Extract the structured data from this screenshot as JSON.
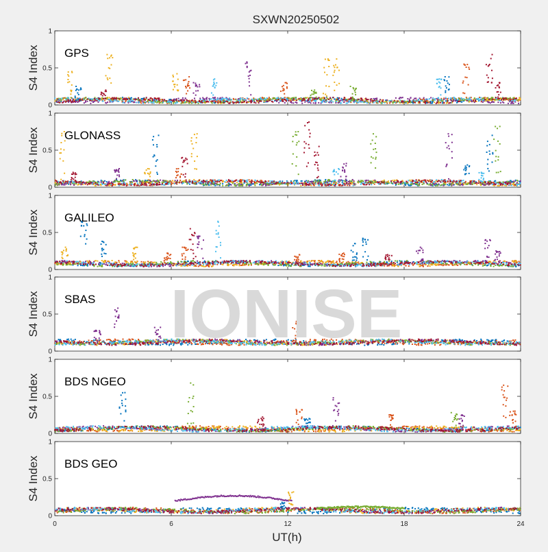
{
  "chart_data": {
    "type": "scatter",
    "title": "SXWN20250502",
    "xlabel": "UT(h)",
    "ylabel": "S4 Index",
    "xlim": [
      0,
      24
    ],
    "ylim": [
      0,
      1
    ],
    "xticks": [
      0,
      6,
      12,
      18,
      24
    ],
    "yticks": [
      0,
      0.5,
      1
    ],
    "xtick_labels": [
      "0",
      "6",
      "12",
      "18",
      "24"
    ],
    "ytick_labels": [
      "0",
      "0.5",
      "1"
    ],
    "watermark": "IONISE",
    "series_colors": [
      "#0072bd",
      "#d95319",
      "#edb120",
      "#7e2f8e",
      "#77ac30",
      "#4dbeee",
      "#a2142f"
    ],
    "panels": [
      {
        "name": "GPS",
        "baseline": 0.06,
        "spikes": [
          [
            0.8,
            0.45,
            2
          ],
          [
            1.2,
            0.25,
            0
          ],
          [
            2.5,
            0.2,
            6
          ],
          [
            2.8,
            0.68,
            2
          ],
          [
            6.2,
            0.42,
            2
          ],
          [
            6.8,
            0.38,
            1
          ],
          [
            7.3,
            0.3,
            3
          ],
          [
            8.2,
            0.35,
            5
          ],
          [
            10.0,
            0.58,
            3
          ],
          [
            11.8,
            0.3,
            1
          ],
          [
            13.3,
            0.2,
            4
          ],
          [
            14.0,
            0.62,
            2
          ],
          [
            14.5,
            0.62,
            2
          ],
          [
            15.4,
            0.25,
            4
          ],
          [
            19.8,
            0.35,
            5
          ],
          [
            20.2,
            0.38,
            0
          ],
          [
            21.2,
            0.55,
            1
          ],
          [
            22.4,
            0.68,
            6
          ],
          [
            22.8,
            0.3,
            6
          ]
        ]
      },
      {
        "name": "GLONASS",
        "baseline": 0.06,
        "spikes": [
          [
            0.4,
            0.75,
            2
          ],
          [
            1.0,
            0.2,
            6
          ],
          [
            3.2,
            0.25,
            3
          ],
          [
            4.8,
            0.25,
            2
          ],
          [
            5.2,
            0.7,
            0
          ],
          [
            6.4,
            0.25,
            1
          ],
          [
            6.7,
            0.4,
            6
          ],
          [
            7.2,
            0.72,
            2
          ],
          [
            12.4,
            0.75,
            4
          ],
          [
            13.0,
            0.88,
            6
          ],
          [
            13.5,
            0.55,
            6
          ],
          [
            14.5,
            0.25,
            5
          ],
          [
            14.9,
            0.32,
            3
          ],
          [
            16.4,
            0.72,
            4
          ],
          [
            20.3,
            0.72,
            3
          ],
          [
            21.2,
            0.3,
            0
          ],
          [
            22.0,
            0.2,
            5
          ],
          [
            22.4,
            0.7,
            0
          ],
          [
            22.8,
            0.82,
            4
          ]
        ]
      },
      {
        "name": "GALILEO",
        "baseline": 0.08,
        "spikes": [
          [
            0.5,
            0.3,
            2
          ],
          [
            1.5,
            0.65,
            0
          ],
          [
            2.5,
            0.38,
            0
          ],
          [
            4.2,
            0.3,
            2
          ],
          [
            5.8,
            0.22,
            1
          ],
          [
            6.7,
            0.3,
            1
          ],
          [
            7.1,
            0.55,
            6
          ],
          [
            7.5,
            0.45,
            3
          ],
          [
            8.4,
            0.65,
            5
          ],
          [
            12.5,
            0.2,
            1
          ],
          [
            14.8,
            0.22,
            1
          ],
          [
            15.4,
            0.35,
            0
          ],
          [
            16.0,
            0.42,
            0
          ],
          [
            17.2,
            0.2,
            6
          ],
          [
            18.8,
            0.3,
            3
          ],
          [
            22.3,
            0.4,
            3
          ],
          [
            22.8,
            0.25,
            3
          ]
        ]
      },
      {
        "name": "SBAS",
        "baseline": 0.12,
        "spikes": [
          [
            2.2,
            0.28,
            3
          ],
          [
            3.2,
            0.58,
            3
          ],
          [
            5.3,
            0.32,
            3
          ],
          [
            12.4,
            0.4,
            1
          ]
        ]
      },
      {
        "name": "BDS NGEO",
        "baseline": 0.06,
        "spikes": [
          [
            3.5,
            0.55,
            0
          ],
          [
            7.0,
            0.68,
            4
          ],
          [
            10.6,
            0.22,
            6
          ],
          [
            12.6,
            0.32,
            1
          ],
          [
            13.0,
            0.2,
            0
          ],
          [
            14.5,
            0.48,
            3
          ],
          [
            17.4,
            0.25,
            1
          ],
          [
            20.6,
            0.28,
            4
          ],
          [
            21.0,
            0.25,
            3
          ],
          [
            23.2,
            0.65,
            1
          ],
          [
            23.6,
            0.3,
            1
          ]
        ]
      },
      {
        "name": "BDS GEO",
        "baseline": 0.07,
        "spikes": [
          [
            12.2,
            0.32,
            2
          ],
          [
            11.8,
            0.18,
            0
          ]
        ],
        "bumps": [
          [
            6.2,
            12.2,
            0.2,
            0.27,
            3
          ],
          [
            13.5,
            18.0,
            0.1,
            0.12,
            4
          ]
        ]
      }
    ]
  }
}
